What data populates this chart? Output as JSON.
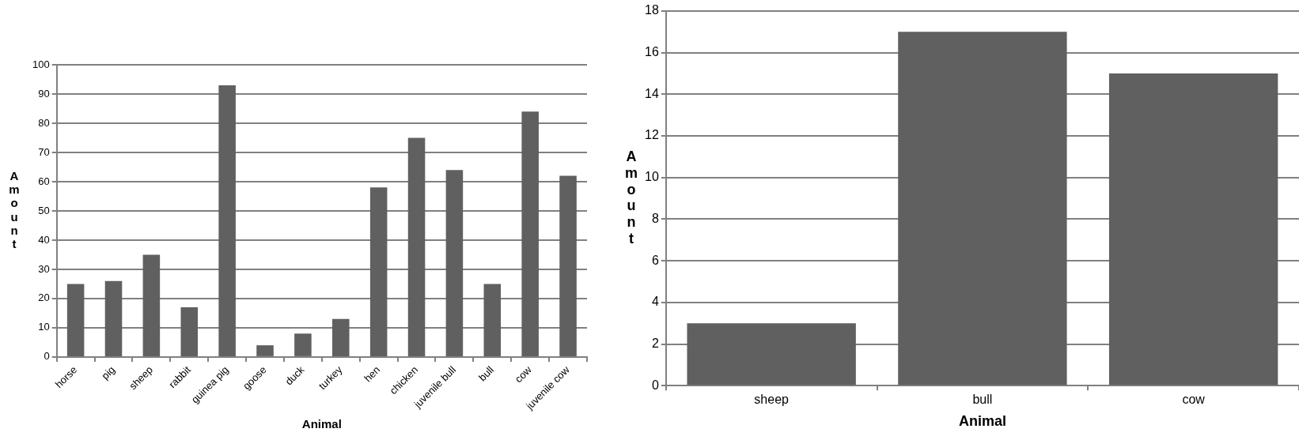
{
  "chart_data": [
    {
      "type": "bar",
      "xlabel": "Animal",
      "ylabel": "Amount",
      "categories": [
        "horse",
        "pig",
        "sheep",
        "rabbit",
        "guinea pig",
        "goose",
        "duck",
        "turkey",
        "hen",
        "chicken",
        "juvenile bull",
        "bull",
        "cow",
        "juvenile cow"
      ],
      "series": [
        {
          "color": "#606060",
          "values": [
            25,
            26,
            35,
            17,
            93,
            4,
            8,
            13,
            58,
            75,
            64,
            25,
            84,
            62
          ]
        }
      ],
      "ylim": [
        0,
        100
      ],
      "yticks": [
        0,
        10,
        20,
        30,
        40,
        50,
        60,
        70,
        80,
        90,
        100
      ],
      "grid": "y",
      "legend": false
    },
    {
      "type": "bar",
      "xlabel": "Animal",
      "ylabel": "Amount",
      "categories": [
        "sheep",
        "bull",
        "cow"
      ],
      "series": [
        {
          "color": "#606060",
          "values": [
            3,
            17,
            15
          ]
        }
      ],
      "ylim": [
        0,
        18
      ],
      "yticks": [
        0,
        2,
        4,
        6,
        8,
        10,
        12,
        14,
        16,
        18
      ],
      "grid": "y",
      "legend": false
    }
  ]
}
